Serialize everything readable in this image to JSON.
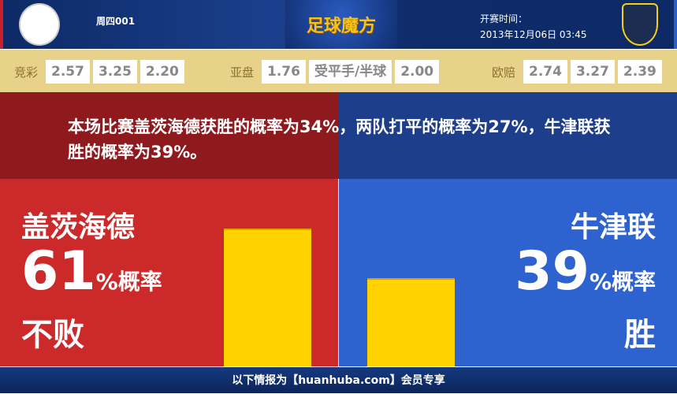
{
  "header": {
    "home_logo": "GATESHEAD FOOTBALL CLUB",
    "match_code": "周四001",
    "brand": "足球魔方",
    "kickoff_label": "开赛时间：",
    "kickoff_time": "2013年12月06日 03:45",
    "away_logo": "Oxford United"
  },
  "odds": {
    "jingcai": {
      "label": "竞彩",
      "values": [
        "2.57",
        "3.25",
        "2.20"
      ]
    },
    "asian": {
      "label": "亚盘",
      "home": "1.76",
      "line": "受平手/半球",
      "away": "2.00"
    },
    "euro": {
      "label": "欧赔",
      "values": [
        "2.74",
        "3.27",
        "2.39"
      ]
    }
  },
  "banner": {
    "text": "本场比赛盖茨海德获胜的概率为34%，两队打平的概率为27%，牛津联获胜的概率为39%。"
  },
  "home": {
    "team": "盖茨海德",
    "percent": "61",
    "suffix": "%概率",
    "result": "不败",
    "bar_value": 61
  },
  "away": {
    "team": "牛津联",
    "percent": "39",
    "suffix": "%概率",
    "result": "胜",
    "bar_value": 39
  },
  "colors": {
    "home": "#cc2a2a",
    "away": "#2d62cf",
    "bar": "#ffd200"
  },
  "footer": {
    "text": "以下情报为【huanhuba.com】会员专享"
  }
}
